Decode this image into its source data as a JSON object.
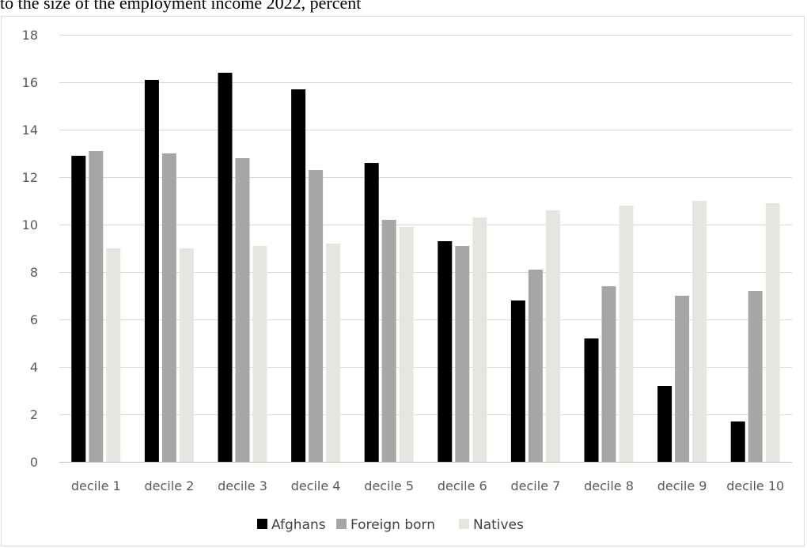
{
  "caption": "to the size of the employment income 2022, percent",
  "chart_data": {
    "type": "bar",
    "title": "to the size of the employment income 2022, percent",
    "categories": [
      "decile 1",
      "decile 2",
      "decile 3",
      "decile 4",
      "decile 5",
      "decile 6",
      "decile 7",
      "decile 8",
      "decile 9",
      "decile 10"
    ],
    "series": [
      {
        "name": "Afghans",
        "color": "#000000",
        "values": [
          12.9,
          16.1,
          16.4,
          15.7,
          12.6,
          9.3,
          6.8,
          5.2,
          3.2,
          1.7
        ]
      },
      {
        "name": "Foreign born",
        "color": "#a6a6a5",
        "values": [
          13.1,
          13.0,
          12.8,
          12.3,
          10.2,
          9.1,
          8.1,
          7.4,
          7.0,
          7.2
        ]
      },
      {
        "name": "Natives",
        "color": "#e6e6e0",
        "values": [
          9.0,
          9.0,
          9.1,
          9.2,
          9.9,
          10.3,
          10.6,
          10.8,
          11.0,
          10.9
        ]
      }
    ],
    "ylim": [
      0,
      18
    ],
    "yticks": [
      0,
      2,
      4,
      6,
      8,
      10,
      12,
      14,
      16,
      18
    ],
    "xlabel": "",
    "ylabel": "",
    "grid": true,
    "legend": "bottom"
  }
}
